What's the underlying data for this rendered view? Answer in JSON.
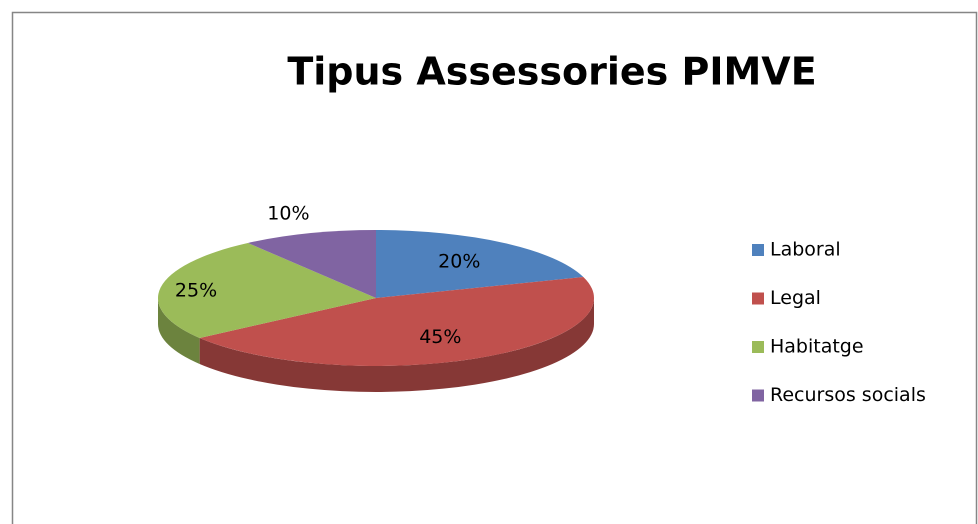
{
  "chart_data": {
    "type": "pie",
    "title": "Tipus Assessories PIMVE",
    "categories": [
      "Laboral",
      "Legal",
      "Habitatge",
      "Recursos socials"
    ],
    "values": [
      20,
      45,
      25,
      10
    ],
    "value_labels": [
      "20%",
      "45%",
      "25%",
      "10%"
    ],
    "colors": [
      "#4f81bd",
      "#c0504d",
      "#9bbb59",
      "#8064a2"
    ],
    "legend": "right"
  }
}
